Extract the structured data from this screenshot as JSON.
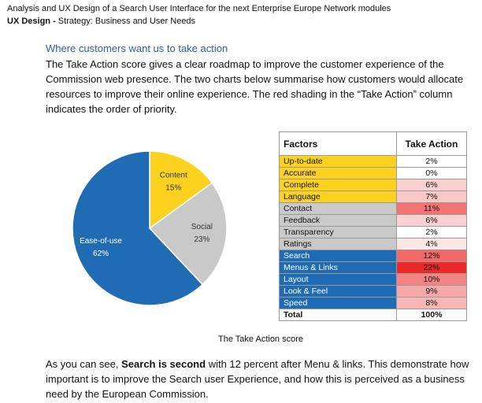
{
  "header": {
    "title": "Analysis and UX Design of a Search User Interface for the next Enterprise Europe Network modules",
    "label": "UX Design -",
    "text": "Strategy: Business and User Needs"
  },
  "section": {
    "heading": "Where customers want us to take action",
    "paragraph": "The Take Action score gives a clear roadmap to improve the customer experience of the Commission web presence. The two charts below summarise how customers would allocate resources to improve their online experience. The red shading in the “Take Action” column indicates the order of priority."
  },
  "chart_data": {
    "type": "pie",
    "categories": [
      "Content",
      "Social",
      "Ease-of-use"
    ],
    "values": [
      15,
      23,
      62
    ],
    "value_labels": [
      "15%",
      "23%",
      "62%"
    ],
    "colors": [
      "#fdd21f",
      "#c9c9c9",
      "#1f6cb5"
    ],
    "label_colors": [
      "#333333",
      "#333333",
      "#ffffff"
    ]
  },
  "table": {
    "headers": [
      "Factors",
      "Take Action"
    ],
    "rows": [
      [
        "Up-to-date",
        "2%"
      ],
      [
        "Accurate",
        "0%"
      ],
      [
        "Complete",
        "6%"
      ],
      [
        "Language",
        "7%"
      ],
      [
        "Contact",
        "11%"
      ],
      [
        "Feedback",
        "6%"
      ],
      [
        "Transparency",
        "2%"
      ],
      [
        "Ratings",
        "4%"
      ],
      [
        "Search",
        "12%"
      ],
      [
        "Menus & Links",
        "22%"
      ],
      [
        "Layout",
        "10%"
      ],
      [
        "Look & Feel",
        "9%"
      ],
      [
        "Speed",
        "8%"
      ]
    ],
    "factor_colors": [
      "#fdd21f",
      "#fdd21f",
      "#fdd21f",
      "#fdd21f",
      "#c9c9c9",
      "#c9c9c9",
      "#c9c9c9",
      "#c9c9c9",
      "#1f6cb5",
      "#1f6cb5",
      "#1f6cb5",
      "#1f6cb5",
      "#1f6cb5"
    ],
    "shades": [
      "#ffffff",
      "#ffffff",
      "#fbd0d0",
      "#fbc8c8",
      "#f27474",
      "#fbd0d0",
      "#ffffff",
      "#fde6e6",
      "#f06868",
      "#ec2828",
      "#f28484",
      "#f6a8a8",
      "#f8b6b6"
    ],
    "total": [
      "Total",
      "100%"
    ]
  },
  "caption": "The Take Action score",
  "closing": {
    "before": "As you can see, ",
    "bold": "Search is second",
    "after": " with 12 percent after Menu & links. This demonstrate how important is to improve the Search user Experience, and how this is perceived as a business need by the European Commission."
  }
}
